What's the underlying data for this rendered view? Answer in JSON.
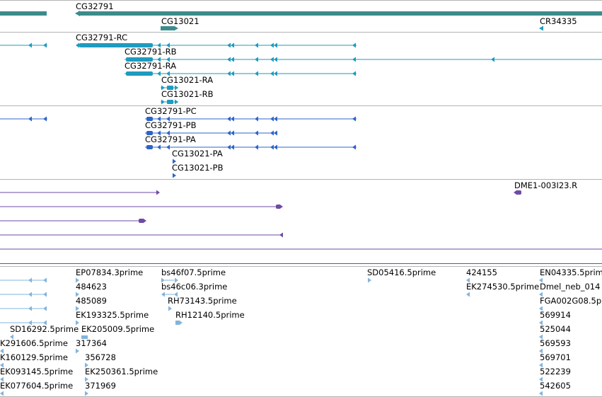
{
  "colors": {
    "gene": "#3c8c8c",
    "transcript_cdna": "#1e9bbe",
    "transcript_protein": "#2d64c8",
    "alignment": "#6e4ba5",
    "est": "#82b4dc",
    "divider": "#b4b4b4"
  },
  "icons": [
    "strand-left-arrow",
    "strand-right-arrow"
  ],
  "tracks": {
    "genes": {
      "features": [
        {
          "label": "",
          "strand": "none"
        },
        {
          "label": "CG32791",
          "strand": "minus"
        },
        {
          "label": "CG13021",
          "strand": "plus"
        },
        {
          "label": "CR34335",
          "strand": "minus"
        }
      ]
    },
    "transcripts": {
      "features": [
        {
          "label": "",
          "strand": "minus"
        },
        {
          "label": "CG32791-RC",
          "strand": "minus"
        },
        {
          "label": "CG32791-RB",
          "strand": "minus"
        },
        {
          "label": "CG32791-RA",
          "strand": "minus"
        },
        {
          "label": "CG13021-RA",
          "strand": "plus"
        },
        {
          "label": "CG13021-RB",
          "strand": "plus"
        }
      ]
    },
    "proteins": {
      "features": [
        {
          "label": "",
          "strand": "minus"
        },
        {
          "label": "CG32791-PC",
          "strand": "minus"
        },
        {
          "label": "CG32791-PB",
          "strand": "minus"
        },
        {
          "label": "CG32791-PA",
          "strand": "minus"
        },
        {
          "label": "CG13021-PA",
          "strand": "plus"
        },
        {
          "label": "CG13021-PB",
          "strand": "plus"
        }
      ]
    },
    "alignments": {
      "features": [
        {
          "label": "",
          "strand": "plus"
        },
        {
          "label": "",
          "strand": "plus"
        },
        {
          "label": "",
          "strand": "plus"
        },
        {
          "label": "",
          "strand": "minus"
        },
        {
          "label": "",
          "strand": "none"
        },
        {
          "label": "DME1-003I23.R",
          "strand": "minus"
        }
      ]
    },
    "ests": {
      "features": [
        "EP07834.3prime",
        "484623",
        "485089",
        "EK193325.5prime",
        "EK205009.5prime",
        "317364",
        "356728",
        "EK250361.5prime",
        "371969",
        "bs46f07.5prime",
        "bs46c06.3prime",
        "RH73143.5prime",
        "RH12140.5prime",
        "SD05416.5prime",
        "424155",
        "EK274530.5prime",
        "EN04335.5prime",
        "Dmel_neb_014",
        "FGA002G08.5p",
        "569914",
        "525044",
        "569593",
        "569701",
        "522239",
        "542605",
        "SD16292.5prime",
        "K291606.5prime",
        "K160129.5prime",
        "EK093145.5prime",
        "EK077604.5prime"
      ]
    }
  }
}
